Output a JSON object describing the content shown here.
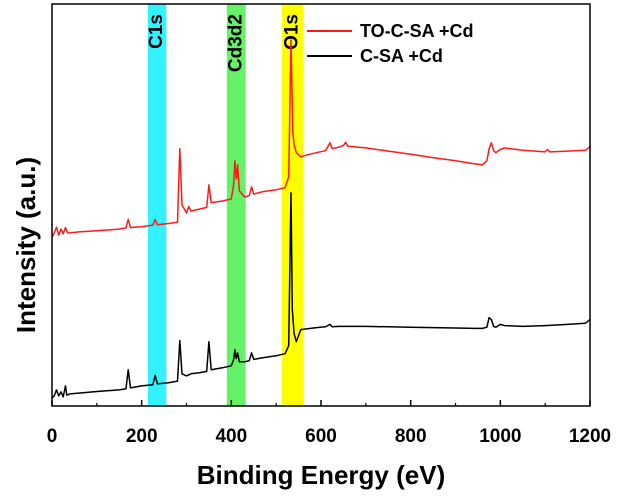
{
  "chart_data": {
    "type": "line",
    "xlabel": "Binding Energy (eV)",
    "ylabel": "Intensity (a.u.)",
    "xlim": [
      0,
      1200
    ],
    "ylim": [
      0,
      100
    ],
    "xticks": [
      0,
      200,
      400,
      600,
      800,
      1000,
      1200
    ],
    "y_tick_labels_shown": false,
    "grid": false,
    "legend_position": "top-right",
    "highlight_bands": [
      {
        "label": "C1s",
        "x_range": [
          214,
          255
        ],
        "color": "#33f2ff"
      },
      {
        "label": "Cd3d2",
        "x_range": [
          390,
          432
        ],
        "color": "#66f266"
      },
      {
        "label": "O1s",
        "x_range": [
          513,
          560
        ],
        "color": "#ffff00"
      }
    ],
    "series": [
      {
        "name": "TO-C-SA +Cd",
        "color": "#ff1a1a",
        "points": [
          [
            0,
            42
          ],
          [
            5,
            43
          ],
          [
            10,
            44.5
          ],
          [
            15,
            42.5
          ],
          [
            20,
            44
          ],
          [
            25,
            42.8
          ],
          [
            30,
            44.4
          ],
          [
            35,
            43
          ],
          [
            60,
            43.3
          ],
          [
            100,
            43.6
          ],
          [
            150,
            44
          ],
          [
            165,
            44.3
          ],
          [
            170,
            46.4
          ],
          [
            175,
            44.4
          ],
          [
            200,
            44.6
          ],
          [
            225,
            45
          ],
          [
            230,
            46.4
          ],
          [
            235,
            45.1
          ],
          [
            260,
            45.4
          ],
          [
            280,
            45.7
          ],
          [
            285,
            64
          ],
          [
            290,
            50
          ],
          [
            295,
            49
          ],
          [
            300,
            48
          ],
          [
            305,
            49.6
          ],
          [
            310,
            48.5
          ],
          [
            330,
            49
          ],
          [
            345,
            49.4
          ],
          [
            350,
            55
          ],
          [
            355,
            50.6
          ],
          [
            380,
            51
          ],
          [
            400,
            51.5
          ],
          [
            405,
            55
          ],
          [
            408,
            61
          ],
          [
            411,
            56.5
          ],
          [
            414,
            60
          ],
          [
            418,
            53.5
          ],
          [
            430,
            52
          ],
          [
            440,
            52.4
          ],
          [
            445,
            54.5
          ],
          [
            450,
            52.7
          ],
          [
            470,
            53.3
          ],
          [
            500,
            53.8
          ],
          [
            520,
            54.3
          ],
          [
            528,
            57
          ],
          [
            533,
            91
          ],
          [
            537,
            68
          ],
          [
            540,
            65
          ],
          [
            545,
            63
          ],
          [
            555,
            62
          ],
          [
            570,
            62.5
          ],
          [
            590,
            63
          ],
          [
            610,
            63.5
          ],
          [
            620,
            65.5
          ],
          [
            625,
            64
          ],
          [
            640,
            64.4
          ],
          [
            650,
            64.8
          ],
          [
            655,
            65.6
          ],
          [
            660,
            64.6
          ],
          [
            700,
            64.2
          ],
          [
            750,
            63.4
          ],
          [
            800,
            62.6
          ],
          [
            850,
            61.8
          ],
          [
            900,
            61
          ],
          [
            940,
            60.3
          ],
          [
            960,
            60
          ],
          [
            970,
            61
          ],
          [
            975,
            64
          ],
          [
            980,
            65.5
          ],
          [
            985,
            63.5
          ],
          [
            990,
            63
          ],
          [
            1000,
            63.8
          ],
          [
            1010,
            64.2
          ],
          [
            1050,
            63.6
          ],
          [
            1100,
            63.2
          ],
          [
            1105,
            63.8
          ],
          [
            1110,
            63.2
          ],
          [
            1150,
            63.4
          ],
          [
            1190,
            63.6
          ],
          [
            1200,
            64.5
          ]
        ]
      },
      {
        "name": "C-SA +Cd",
        "color": "#000000",
        "points": [
          [
            0,
            2
          ],
          [
            5,
            2.5
          ],
          [
            10,
            4
          ],
          [
            15,
            2.5
          ],
          [
            20,
            3.5
          ],
          [
            25,
            2.3
          ],
          [
            30,
            5
          ],
          [
            33,
            2.7
          ],
          [
            40,
            3
          ],
          [
            60,
            3.2
          ],
          [
            100,
            3.6
          ],
          [
            150,
            4
          ],
          [
            165,
            4.3
          ],
          [
            170,
            9
          ],
          [
            175,
            4.5
          ],
          [
            200,
            5
          ],
          [
            225,
            5.3
          ],
          [
            230,
            7.6
          ],
          [
            235,
            5.5
          ],
          [
            260,
            5.8
          ],
          [
            280,
            6.2
          ],
          [
            285,
            16.3
          ],
          [
            290,
            8
          ],
          [
            300,
            7.5
          ],
          [
            310,
            8
          ],
          [
            330,
            8.3
          ],
          [
            345,
            8.6
          ],
          [
            350,
            16
          ],
          [
            355,
            9
          ],
          [
            380,
            9.5
          ],
          [
            400,
            10
          ],
          [
            405,
            11.5
          ],
          [
            408,
            14
          ],
          [
            411,
            11.8
          ],
          [
            414,
            13.2
          ],
          [
            418,
            11
          ],
          [
            430,
            11
          ],
          [
            440,
            11.3
          ],
          [
            445,
            13.2
          ],
          [
            450,
            11.6
          ],
          [
            470,
            12
          ],
          [
            500,
            12.5
          ],
          [
            520,
            13
          ],
          [
            528,
            15
          ],
          [
            533,
            53
          ],
          [
            536,
            24
          ],
          [
            540,
            18
          ],
          [
            545,
            16
          ],
          [
            555,
            19
          ],
          [
            570,
            19.2
          ],
          [
            590,
            19.5
          ],
          [
            610,
            19.7
          ],
          [
            620,
            20.3
          ],
          [
            625,
            19.7
          ],
          [
            640,
            19.8
          ],
          [
            700,
            19.8
          ],
          [
            750,
            19.7
          ],
          [
            800,
            19.6
          ],
          [
            850,
            19.5
          ],
          [
            900,
            19.4
          ],
          [
            940,
            19.3
          ],
          [
            960,
            19.3
          ],
          [
            970,
            19.6
          ],
          [
            975,
            22
          ],
          [
            980,
            21.5
          ],
          [
            985,
            19.8
          ],
          [
            990,
            19.6
          ],
          [
            1000,
            20.3
          ],
          [
            1010,
            20
          ],
          [
            1050,
            19.8
          ],
          [
            1100,
            20
          ],
          [
            1150,
            20.3
          ],
          [
            1190,
            20.6
          ],
          [
            1200,
            21.5
          ]
        ]
      }
    ]
  }
}
